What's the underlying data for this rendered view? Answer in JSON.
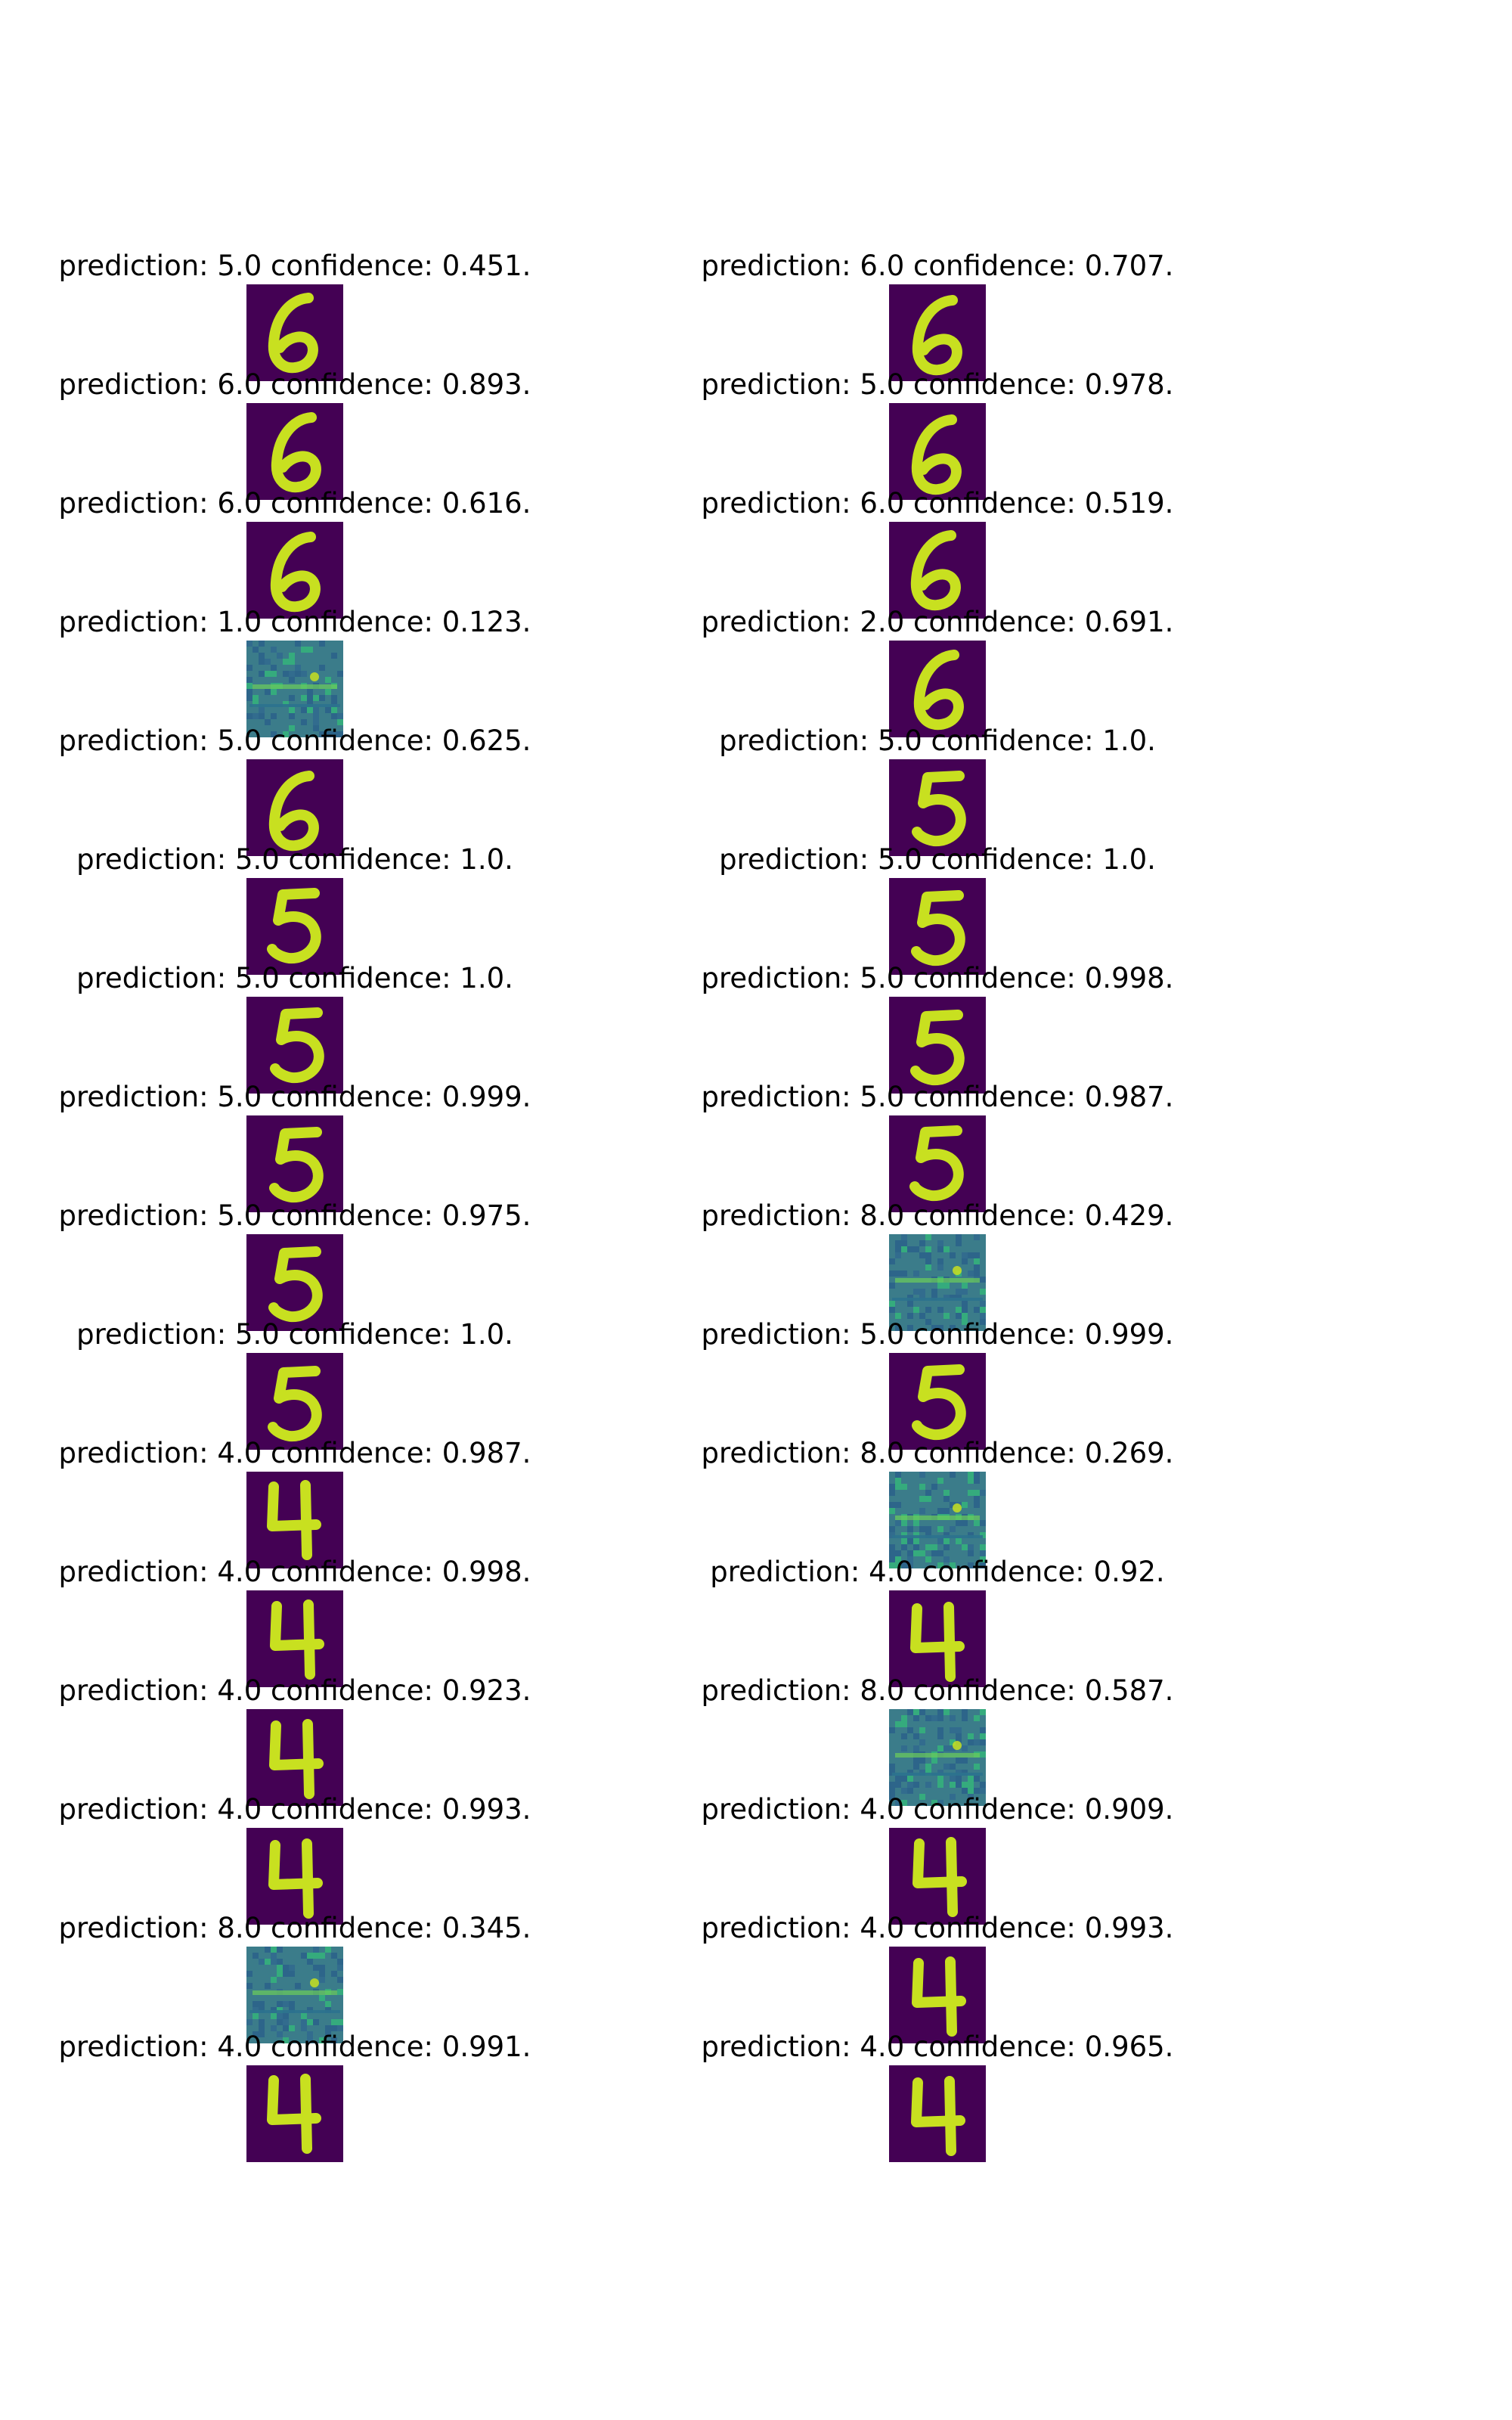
{
  "chart_data": {
    "type": "image_grid",
    "colors": {
      "background": "#440154",
      "foreground": "#c8e020",
      "mid": "#3b7c8a",
      "border": "#21908d"
    },
    "panels": [
      {
        "label": "prediction: 5.0 confidence: 0.451.",
        "prediction": 5.0,
        "confidence": 0.451,
        "glyph": "6"
      },
      {
        "label": "prediction: 6.0 confidence: 0.707.",
        "prediction": 6.0,
        "confidence": 0.707,
        "glyph": "6"
      },
      {
        "label": "prediction: 6.0 confidence: 0.893.",
        "prediction": 6.0,
        "confidence": 0.893,
        "glyph": "6"
      },
      {
        "label": "prediction: 5.0 confidence: 0.978.",
        "prediction": 5.0,
        "confidence": 0.978,
        "glyph": "6"
      },
      {
        "label": "prediction: 6.0 confidence: 0.616.",
        "prediction": 6.0,
        "confidence": 0.616,
        "glyph": "6"
      },
      {
        "label": "prediction: 6.0 confidence: 0.519.",
        "prediction": 6.0,
        "confidence": 0.519,
        "glyph": "6"
      },
      {
        "label": "prediction: 1.0 confidence: 0.123.",
        "prediction": 1.0,
        "confidence": 0.123,
        "glyph": "noise"
      },
      {
        "label": "prediction: 2.0 confidence: 0.691.",
        "prediction": 2.0,
        "confidence": 0.691,
        "glyph": "6"
      },
      {
        "label": "prediction: 5.0 confidence: 0.625.",
        "prediction": 5.0,
        "confidence": 0.625,
        "glyph": "6"
      },
      {
        "label": "prediction: 5.0 confidence: 1.0.",
        "prediction": 5.0,
        "confidence": 1.0,
        "glyph": "5"
      },
      {
        "label": "prediction: 5.0 confidence: 1.0.",
        "prediction": 5.0,
        "confidence": 1.0,
        "glyph": "5"
      },
      {
        "label": "prediction: 5.0 confidence: 1.0.",
        "prediction": 5.0,
        "confidence": 1.0,
        "glyph": "5"
      },
      {
        "label": "prediction: 5.0 confidence: 1.0.",
        "prediction": 5.0,
        "confidence": 1.0,
        "glyph": "5"
      },
      {
        "label": "prediction: 5.0 confidence: 0.998.",
        "prediction": 5.0,
        "confidence": 0.998,
        "glyph": "5"
      },
      {
        "label": "prediction: 5.0 confidence: 0.999.",
        "prediction": 5.0,
        "confidence": 0.999,
        "glyph": "5"
      },
      {
        "label": "prediction: 5.0 confidence: 0.987.",
        "prediction": 5.0,
        "confidence": 0.987,
        "glyph": "5"
      },
      {
        "label": "prediction: 5.0 confidence: 0.975.",
        "prediction": 5.0,
        "confidence": 0.975,
        "glyph": "5"
      },
      {
        "label": "prediction: 8.0 confidence: 0.429.",
        "prediction": 8.0,
        "confidence": 0.429,
        "glyph": "noise"
      },
      {
        "label": "prediction: 5.0 confidence: 1.0.",
        "prediction": 5.0,
        "confidence": 1.0,
        "glyph": "5"
      },
      {
        "label": "prediction: 5.0 confidence: 0.999.",
        "prediction": 5.0,
        "confidence": 0.999,
        "glyph": "5"
      },
      {
        "label": "prediction: 4.0 confidence: 0.987.",
        "prediction": 4.0,
        "confidence": 0.987,
        "glyph": "4"
      },
      {
        "label": "prediction: 8.0 confidence: 0.269.",
        "prediction": 8.0,
        "confidence": 0.269,
        "glyph": "noise"
      },
      {
        "label": "prediction: 4.0 confidence: 0.998.",
        "prediction": 4.0,
        "confidence": 0.998,
        "glyph": "4"
      },
      {
        "label": "prediction: 4.0 confidence: 0.92.",
        "prediction": 4.0,
        "confidence": 0.92,
        "glyph": "4"
      },
      {
        "label": "prediction: 4.0 confidence: 0.923.",
        "prediction": 4.0,
        "confidence": 0.923,
        "glyph": "4"
      },
      {
        "label": "prediction: 8.0 confidence: 0.587.",
        "prediction": 8.0,
        "confidence": 0.587,
        "glyph": "noise"
      },
      {
        "label": "prediction: 4.0 confidence: 0.993.",
        "prediction": 4.0,
        "confidence": 0.993,
        "glyph": "4"
      },
      {
        "label": "prediction: 4.0 confidence: 0.909.",
        "prediction": 4.0,
        "confidence": 0.909,
        "glyph": "4"
      },
      {
        "label": "prediction: 8.0 confidence: 0.345.",
        "prediction": 8.0,
        "confidence": 0.345,
        "glyph": "noise"
      },
      {
        "label": "prediction: 4.0 confidence: 0.993.",
        "prediction": 4.0,
        "confidence": 0.993,
        "glyph": "4"
      },
      {
        "label": "prediction: 4.0 confidence: 0.991.",
        "prediction": 4.0,
        "confidence": 0.991,
        "glyph": "4"
      },
      {
        "label": "prediction: 4.0 confidence: 0.965.",
        "prediction": 4.0,
        "confidence": 0.965,
        "glyph": "4"
      }
    ]
  }
}
